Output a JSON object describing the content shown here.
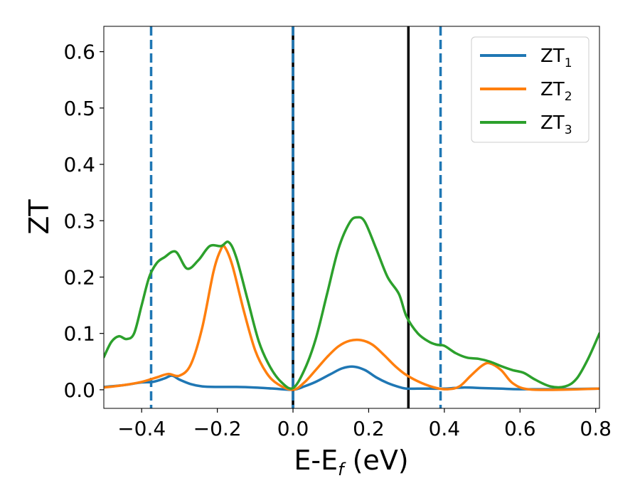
{
  "chart_data": {
    "type": "line",
    "xlabel": "E-E",
    "xlabel_sub": "f",
    "xlabel_unit": " (eV)",
    "ylabel": "ZT",
    "xlim": [
      -0.5,
      0.81
    ],
    "ylim": [
      -0.033,
      0.645
    ],
    "xticks": [
      -0.4,
      -0.2,
      0.0,
      0.2,
      0.4,
      0.6,
      0.8
    ],
    "xtick_labels": [
      "−0.4",
      "−0.2",
      "0.0",
      "0.2",
      "0.4",
      "0.6",
      "0.8"
    ],
    "yticks": [
      0.0,
      0.1,
      0.2,
      0.3,
      0.4,
      0.5,
      0.6
    ],
    "ytick_labels": [
      "0.0",
      "0.1",
      "0.2",
      "0.3",
      "0.4",
      "0.5",
      "0.6"
    ],
    "grid": false,
    "legend_position": "top-right",
    "series": [
      {
        "name": "ZT",
        "name_sub": "1",
        "color": "#1f77b4",
        "x": [
          -0.5,
          -0.45,
          -0.4,
          -0.37,
          -0.34,
          -0.32,
          -0.3,
          -0.27,
          -0.24,
          -0.2,
          -0.15,
          -0.1,
          -0.05,
          0.0,
          0.03,
          0.06,
          0.1,
          0.13,
          0.16,
          0.19,
          0.22,
          0.25,
          0.28,
          0.3,
          0.33,
          0.36,
          0.4,
          0.45,
          0.5,
          0.55,
          0.6,
          0.7,
          0.81
        ],
        "y": [
          0.005,
          0.008,
          0.013,
          0.014,
          0.02,
          0.025,
          0.018,
          0.01,
          0.006,
          0.005,
          0.005,
          0.004,
          0.002,
          0.0,
          0.006,
          0.014,
          0.028,
          0.038,
          0.041,
          0.035,
          0.022,
          0.012,
          0.005,
          0.002,
          0.002,
          0.002,
          0.002,
          0.004,
          0.003,
          0.002,
          0.001,
          0.001,
          0.002
        ]
      },
      {
        "name": "ZT",
        "name_sub": "2",
        "color": "#ff7f0e",
        "x": [
          -0.5,
          -0.45,
          -0.4,
          -0.36,
          -0.33,
          -0.3,
          -0.27,
          -0.24,
          -0.21,
          -0.19,
          -0.18,
          -0.16,
          -0.13,
          -0.1,
          -0.07,
          -0.04,
          0.0,
          0.03,
          0.06,
          0.09,
          0.12,
          0.15,
          0.18,
          0.21,
          0.24,
          0.27,
          0.3,
          0.34,
          0.38,
          0.41,
          0.44,
          0.47,
          0.5,
          0.52,
          0.55,
          0.58,
          0.62,
          0.7,
          0.81
        ],
        "y": [
          0.004,
          0.008,
          0.014,
          0.022,
          0.028,
          0.025,
          0.045,
          0.11,
          0.21,
          0.25,
          0.253,
          0.22,
          0.14,
          0.07,
          0.03,
          0.01,
          0.0,
          0.013,
          0.035,
          0.058,
          0.077,
          0.087,
          0.088,
          0.08,
          0.062,
          0.042,
          0.026,
          0.012,
          0.003,
          0.001,
          0.006,
          0.025,
          0.043,
          0.047,
          0.035,
          0.012,
          0.001,
          0.0,
          0.002
        ]
      },
      {
        "name": "ZT",
        "name_sub": "3",
        "color": "#2ca02c",
        "x": [
          -0.5,
          -0.48,
          -0.46,
          -0.44,
          -0.42,
          -0.4,
          -0.38,
          -0.36,
          -0.34,
          -0.31,
          -0.28,
          -0.25,
          -0.22,
          -0.19,
          -0.17,
          -0.15,
          -0.12,
          -0.09,
          -0.06,
          -0.03,
          0.0,
          0.03,
          0.06,
          0.09,
          0.12,
          0.15,
          0.17,
          0.19,
          0.22,
          0.25,
          0.28,
          0.3,
          0.33,
          0.36,
          0.38,
          0.4,
          0.43,
          0.46,
          0.49,
          0.52,
          0.55,
          0.58,
          0.61,
          0.64,
          0.68,
          0.72,
          0.75,
          0.78,
          0.81
        ],
        "y": [
          0.058,
          0.085,
          0.095,
          0.09,
          0.1,
          0.15,
          0.2,
          0.225,
          0.235,
          0.245,
          0.215,
          0.23,
          0.255,
          0.255,
          0.262,
          0.235,
          0.16,
          0.085,
          0.04,
          0.013,
          0.003,
          0.035,
          0.09,
          0.17,
          0.25,
          0.297,
          0.306,
          0.298,
          0.25,
          0.2,
          0.17,
          0.13,
          0.1,
          0.085,
          0.08,
          0.078,
          0.065,
          0.057,
          0.055,
          0.05,
          0.042,
          0.035,
          0.03,
          0.018,
          0.006,
          0.006,
          0.02,
          0.055,
          0.1
        ]
      }
    ],
    "vlines": [
      {
        "x": -0.375,
        "style": "dashed",
        "color": "#1f77b4"
      },
      {
        "x": 0.0,
        "style": "solid",
        "color": "#000000"
      },
      {
        "x": 0.0,
        "style": "dashed",
        "color": "#1f77b4"
      },
      {
        "x": 0.305,
        "style": "solid",
        "color": "#000000"
      },
      {
        "x": 0.39,
        "style": "dashed",
        "color": "#1f77b4"
      }
    ]
  }
}
